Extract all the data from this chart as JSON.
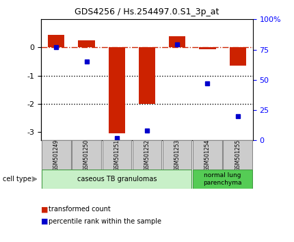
{
  "title": "GDS4256 / Hs.254497.0.S1_3p_at",
  "samples": [
    "GSM501249",
    "GSM501250",
    "GSM501251",
    "GSM501252",
    "GSM501253",
    "GSM501254",
    "GSM501255"
  ],
  "red_values": [
    0.45,
    0.25,
    -3.05,
    -2.0,
    0.4,
    -0.05,
    -0.65
  ],
  "blue_values_pct": [
    77,
    65,
    2,
    8,
    79,
    47,
    20
  ],
  "ylim_left": [
    -3.3,
    1.0
  ],
  "ylim_right": [
    0,
    100
  ],
  "yticks_left": [
    0,
    -1,
    -2,
    -3
  ],
  "yticks_right": [
    0,
    25,
    50,
    75,
    100
  ],
  "yticklabels_right": [
    "0",
    "25",
    "50",
    "75",
    "100%"
  ],
  "dotted_lines": [
    -1,
    -2
  ],
  "bar_color": "#cc2200",
  "dot_color": "#0000cc",
  "group1_label": "caseous TB granulomas",
  "group1_color": "#c8f0c8",
  "group1_samples": [
    0,
    1,
    2,
    3,
    4
  ],
  "group2_label": "normal lung\nparenchyma",
  "group2_color": "#55cc55",
  "group2_samples": [
    5,
    6
  ],
  "cell_type_label": "cell type",
  "legend_red": "transformed count",
  "legend_blue": "percentile rank within the sample",
  "tick_label_bg": "#cccccc",
  "tick_label_border": "#999999"
}
